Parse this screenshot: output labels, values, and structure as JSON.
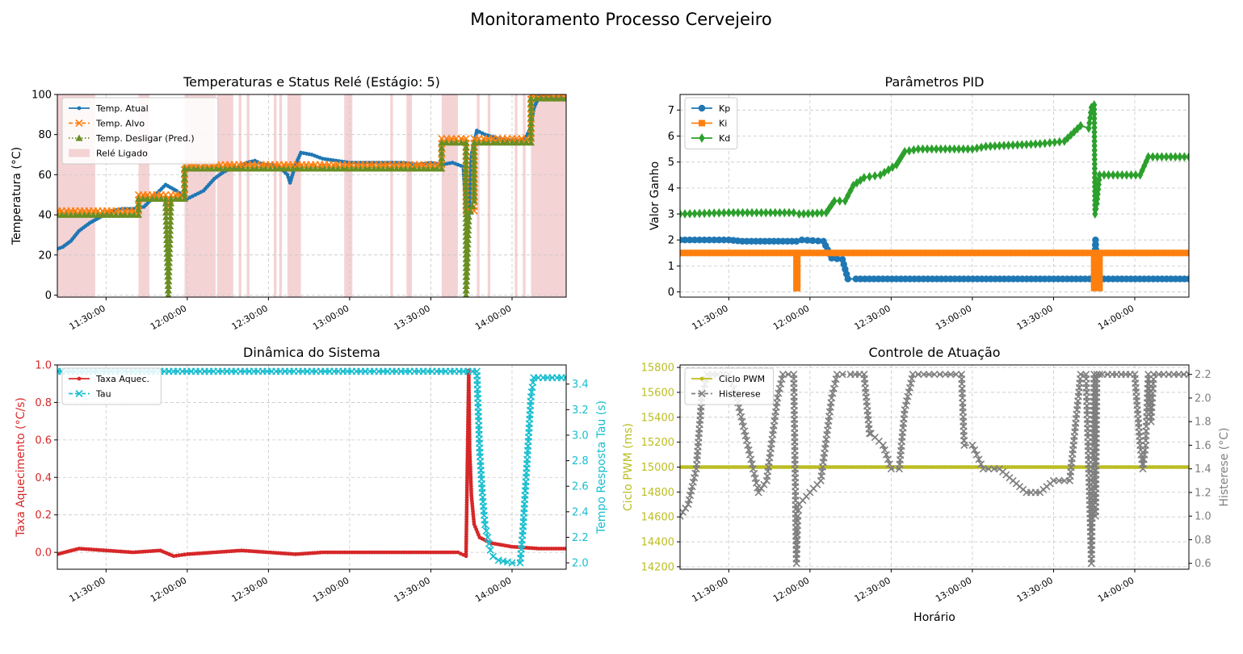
{
  "figure_title": "Monitoramento Processo Cervejeiro",
  "colors": {
    "blue": "#1f77b4",
    "orange": "#ff7f0e",
    "olive_green": "#6b8e23",
    "green": "#2ca02c",
    "red": "#d62728",
    "cyan": "#17becf",
    "olive": "#bcbd22",
    "gray": "#7f7f7f",
    "relay_fill": "#f4d3d5"
  },
  "chart_data": [
    {
      "id": "temps",
      "type": "line",
      "title": "Temperaturas e Status Relé (Estágio: 5)",
      "ylabel": "Temperatura (°C)",
      "xlabel": "",
      "xlim": [
        "11:12:00",
        "14:20:00"
      ],
      "xticks": [
        "11:30:00",
        "12:00:00",
        "12:30:00",
        "13:00:00",
        "13:30:00",
        "14:00:00"
      ],
      "ylim": [
        -1,
        100
      ],
      "yticks": [
        0,
        20,
        40,
        60,
        80,
        100
      ],
      "grid": true,
      "legend_position": "top-left",
      "legend": [
        "Temp. Atual",
        "Temp. Alvo",
        "Temp. Desligar (Pred.)",
        "Relé Ligado"
      ],
      "relay_on_intervals": [
        [
          "11:12:00",
          "11:26:00"
        ],
        [
          "11:42:00",
          "11:46:00"
        ],
        [
          "11:59:00",
          "12:10:30"
        ],
        [
          "12:11:00",
          "12:17:00"
        ],
        [
          "12:19:00",
          "12:20:00"
        ],
        [
          "12:22:00",
          "12:23:00"
        ],
        [
          "12:32:00",
          "12:33:00"
        ],
        [
          "12:34:00",
          "12:35:00"
        ],
        [
          "12:37:00",
          "12:42:00"
        ],
        [
          "12:58:00",
          "13:01:00"
        ],
        [
          "13:15:00",
          "13:16:00"
        ],
        [
          "13:21:00",
          "13:23:00"
        ],
        [
          "13:34:00",
          "13:40:00"
        ],
        [
          "13:47:00",
          "13:48:00"
        ],
        [
          "13:51:00",
          "13:52:00"
        ],
        [
          "14:01:00",
          "14:02:00"
        ],
        [
          "14:04:00",
          "14:05:00"
        ],
        [
          "14:07:00",
          "14:20:00"
        ]
      ],
      "series": [
        {
          "name": "Temp. Atual",
          "color": "#1f77b4",
          "style": "solid",
          "marker": "dot",
          "x": [
            "11:12:00",
            "11:14:00",
            "11:17:00",
            "11:20:00",
            "11:24:00",
            "11:28:00",
            "11:32:00",
            "11:36:00",
            "11:40:00",
            "11:44:00",
            "11:47:00",
            "11:49:00",
            "11:52:00",
            "11:56:00",
            "11:58:00",
            "12:00:00",
            "12:03:00",
            "12:06:00",
            "12:08:00",
            "12:10:00",
            "12:13:00",
            "12:16:00",
            "12:19:00",
            "12:22:00",
            "12:25:00",
            "12:28:00",
            "12:31:00",
            "12:34:00",
            "12:37:00",
            "12:38:00",
            "12:40:00",
            "12:42:00",
            "12:46:00",
            "12:50:00",
            "12:55:00",
            "13:00:00",
            "13:05:00",
            "13:10:00",
            "13:15:00",
            "13:20:00",
            "13:25:00",
            "13:30:00",
            "13:34:00",
            "13:38:00",
            "13:42:00",
            "13:43:00",
            "13:44:00",
            "13:45:00",
            "13:47:00",
            "13:50:00",
            "13:55:00",
            "14:00:00",
            "14:03:00",
            "14:05:00",
            "14:07:00",
            "14:08:00",
            "14:10:00",
            "14:20:00"
          ],
          "y": [
            23,
            24,
            27,
            32,
            36,
            39,
            42,
            43,
            43,
            44,
            48,
            51,
            55,
            52,
            50,
            48,
            50,
            52,
            55,
            58,
            61,
            63,
            64,
            66,
            67,
            65,
            65,
            64,
            60,
            56,
            65,
            71,
            70,
            68,
            67,
            66,
            66,
            66,
            66,
            66,
            65,
            66,
            65,
            66,
            64,
            42,
            38,
            70,
            82,
            80,
            78,
            77,
            77,
            78,
            84,
            93,
            99,
            98
          ]
        },
        {
          "name": "Temp. Alvo",
          "color": "#ff7f0e",
          "style": "dashed",
          "marker": "x",
          "x": [
            "11:12:00",
            "11:42:00",
            "11:42:00",
            "11:52:00",
            "11:53:00",
            "11:54:00",
            "11:59:00",
            "11:59:00",
            "13:34:00",
            "13:34:00",
            "13:43:00",
            "13:43:00",
            "13:46:00",
            "13:46:00",
            "14:07:00",
            "14:07:00",
            "14:20:00"
          ],
          "y": [
            42,
            42,
            50,
            50,
            42,
            50,
            50,
            65,
            65,
            78,
            78,
            42,
            42,
            78,
            78,
            100,
            100
          ]
        },
        {
          "name": "Temp. Desligar (Pred.)",
          "color": "#6b8e23",
          "style": "dotted",
          "marker": "triangle",
          "x": [
            "11:12:00",
            "11:42:00",
            "11:42:00",
            "11:52:00",
            "11:53:00",
            "11:54:00",
            "11:59:00",
            "11:59:00",
            "13:34:00",
            "13:34:00",
            "13:43:00",
            "13:43:00",
            "13:44:00",
            "13:46:00",
            "13:46:00",
            "14:07:00",
            "14:07:00",
            "14:20:00"
          ],
          "y": [
            40,
            40,
            48,
            48,
            0,
            48,
            48,
            63,
            63,
            76,
            76,
            0,
            39,
            47,
            76,
            76,
            98,
            98
          ]
        }
      ]
    },
    {
      "id": "pid",
      "type": "line",
      "title": "Parâmetros PID",
      "ylabel": "Valor Ganho",
      "xlabel": "",
      "xlim": [
        "11:12:00",
        "14:20:00"
      ],
      "xticks": [
        "11:30:00",
        "12:00:00",
        "12:30:00",
        "13:00:00",
        "13:30:00",
        "14:00:00"
      ],
      "ylim": [
        -0.2,
        7.6
      ],
      "yticks": [
        0,
        1,
        2,
        3,
        4,
        5,
        6,
        7
      ],
      "grid": true,
      "legend_position": "top-left",
      "series": [
        {
          "name": "Kp",
          "color": "#1f77b4",
          "marker": "circle",
          "x": [
            "11:12:00",
            "11:30:00",
            "11:35:00",
            "11:55:00",
            "11:57:00",
            "12:05:00",
            "12:08:00",
            "12:12:00",
            "12:14:00",
            "12:17:00",
            "13:45:00",
            "13:45:30",
            "13:46:00",
            "13:46:30",
            "13:47:00",
            "14:20:00"
          ],
          "y": [
            2.0,
            2.0,
            1.95,
            1.95,
            2.0,
            1.95,
            1.3,
            1.25,
            0.5,
            0.5,
            0.5,
            2.0,
            0.2,
            1.2,
            0.5,
            0.5
          ]
        },
        {
          "name": "Ki",
          "color": "#ff7f0e",
          "marker": "square",
          "x": [
            "11:12:00",
            "11:55:00",
            "11:55:00",
            "11:55:20",
            "11:55:20",
            "13:45:00",
            "13:45:00",
            "13:47:00",
            "13:47:00",
            "14:20:00"
          ],
          "y": [
            1.5,
            1.5,
            0.15,
            0.15,
            1.5,
            1.5,
            0.15,
            0.15,
            1.5,
            1.5
          ]
        },
        {
          "name": "Kd",
          "color": "#2ca02c",
          "marker": "diamond",
          "x": [
            "11:12:00",
            "11:30:00",
            "11:54:00",
            "11:56:00",
            "12:06:00",
            "12:09:00",
            "12:13:00",
            "12:16:00",
            "12:20:00",
            "12:26:00",
            "12:32:00",
            "12:35:00",
            "12:40:00",
            "13:00:00",
            "13:05:00",
            "13:25:00",
            "13:34:00",
            "13:40:00",
            "13:43:00",
            "13:44:00",
            "13:45:00",
            "13:45:20",
            "13:46:00",
            "13:47:00",
            "14:02:00",
            "14:05:00",
            "14:20:00"
          ],
          "y": [
            3.0,
            3.05,
            3.05,
            3.0,
            3.05,
            3.5,
            3.5,
            4.1,
            4.4,
            4.5,
            4.9,
            5.4,
            5.5,
            5.5,
            5.6,
            5.7,
            5.8,
            6.4,
            6.3,
            7.1,
            7.2,
            3.0,
            3.4,
            4.5,
            4.5,
            5.2,
            5.2
          ]
        }
      ]
    },
    {
      "id": "dynamics",
      "type": "line",
      "title": "Dinâmica do Sistema",
      "ylabel": "Taxa Aquecimento (°C/s)",
      "y2label": "Tempo Resposta Tau (s)",
      "xlabel": "",
      "xlim": [
        "11:12:00",
        "14:20:00"
      ],
      "xticks": [
        "11:30:00",
        "12:00:00",
        "12:30:00",
        "13:00:00",
        "13:30:00",
        "14:00:00"
      ],
      "ylim": [
        -0.09,
        1.0
      ],
      "yticks": [
        0.0,
        0.2,
        0.4,
        0.6,
        0.8,
        1.0
      ],
      "y2lim": [
        1.95,
        3.55
      ],
      "y2ticks": [
        2.0,
        2.2,
        2.4,
        2.6,
        2.8,
        3.0,
        3.2,
        3.4
      ],
      "grid": true,
      "legend_position": "top-left",
      "series": [
        {
          "name": "Taxa Aquec.",
          "color": "#d62728",
          "axis": "left",
          "marker": "dot",
          "x": [
            "11:12:00",
            "11:20:00",
            "11:30:00",
            "11:40:00",
            "11:50:00",
            "11:55:00",
            "12:00:00",
            "12:10:00",
            "12:20:00",
            "12:30:00",
            "12:40:00",
            "12:50:00",
            "13:00:00",
            "13:10:00",
            "13:20:00",
            "13:30:00",
            "13:40:00",
            "13:43:00",
            "13:44:00",
            "13:44:20",
            "13:45:00",
            "13:46:00",
            "13:48:00",
            "13:52:00",
            "14:00:00",
            "14:10:00",
            "14:20:00"
          ],
          "y": [
            -0.01,
            0.02,
            0.01,
            0.0,
            0.01,
            -0.02,
            -0.01,
            0.0,
            0.01,
            0.0,
            -0.01,
            0.0,
            0.0,
            0.0,
            0.0,
            0.0,
            0.0,
            -0.02,
            0.97,
            0.55,
            0.3,
            0.15,
            0.08,
            0.05,
            0.03,
            0.02,
            0.02
          ]
        },
        {
          "name": "Tau",
          "color": "#17becf",
          "axis": "right",
          "marker": "x",
          "x": [
            "11:12:00",
            "13:47:00",
            "13:48:00",
            "13:49:00",
            "13:50:00",
            "13:51:00",
            "13:52:00",
            "13:53:00",
            "13:55:00",
            "14:00:00",
            "14:03:00",
            "14:04:00",
            "14:05:00",
            "14:06:00",
            "14:07:00",
            "14:08:00",
            "14:20:00"
          ],
          "y": [
            3.5,
            3.5,
            2.9,
            2.55,
            2.3,
            2.2,
            2.1,
            2.05,
            2.02,
            2.0,
            2.0,
            2.25,
            2.6,
            2.95,
            3.3,
            3.45,
            3.45
          ]
        }
      ]
    },
    {
      "id": "actuation",
      "type": "line",
      "title": "Controle de Atuação",
      "ylabel": "Ciclo PWM (ms)",
      "y2label": "Histerese (°C)",
      "xlabel": "Horário",
      "xlim": [
        "11:12:00",
        "14:20:00"
      ],
      "xticks": [
        "11:30:00",
        "12:00:00",
        "12:30:00",
        "13:00:00",
        "13:30:00",
        "14:00:00"
      ],
      "ylim": [
        14180,
        15820
      ],
      "yticks": [
        14200,
        14400,
        14600,
        14800,
        15000,
        15200,
        15400,
        15600,
        15800
      ],
      "y2lim": [
        0.55,
        2.28
      ],
      "y2ticks": [
        0.6,
        0.8,
        1.0,
        1.2,
        1.4,
        1.6,
        1.8,
        2.0,
        2.2
      ],
      "grid": true,
      "legend_position": "top-left",
      "series": [
        {
          "name": "Ciclo PWM",
          "color": "#bcbd22",
          "axis": "left",
          "marker": "dot",
          "x": [
            "11:12:00",
            "14:20:00"
          ],
          "y": [
            15000,
            15000
          ]
        },
        {
          "name": "Histerese",
          "color": "#7f7f7f",
          "axis": "right",
          "marker": "x",
          "x": [
            "11:12:00",
            "11:15:00",
            "11:18:00",
            "11:20:00",
            "11:22:00",
            "11:30:00",
            "11:33:00",
            "11:37:00",
            "11:41:00",
            "11:44:00",
            "11:48:00",
            "11:50:00",
            "11:52:00",
            "11:54:00",
            "11:55:00",
            "11:55:30",
            "11:56:00",
            "12:00:00",
            "12:04:00",
            "12:08:00",
            "12:10:00",
            "12:12:00",
            "12:15:00",
            "12:20:00",
            "12:22:00",
            "12:22:30",
            "12:27:00",
            "12:30:00",
            "12:33:00",
            "12:35:00",
            "12:38:00",
            "12:42:00",
            "12:50:00",
            "12:56:00",
            "12:57:00",
            "13:00:00",
            "13:04:00",
            "13:10:00",
            "13:15:00",
            "13:20:00",
            "13:25:00",
            "13:30:00",
            "13:36:00",
            "13:40:00",
            "13:42:00",
            "13:44:00",
            "13:45:00",
            "13:45:30",
            "13:46:00",
            "13:47:00",
            "13:48:00",
            "13:50:00",
            "14:00:00",
            "14:02:00",
            "14:03:00",
            "14:04:00",
            "14:05:00",
            "14:06:00",
            "14:07:00",
            "14:20:00"
          ],
          "y": [
            1.0,
            1.1,
            1.4,
            2.0,
            2.2,
            2.2,
            2.0,
            1.6,
            1.2,
            1.3,
            2.0,
            2.2,
            2.2,
            2.2,
            0.6,
            1.0,
            1.1,
            1.2,
            1.3,
            2.0,
            2.2,
            2.2,
            2.2,
            2.2,
            1.7,
            1.7,
            1.6,
            1.4,
            1.4,
            1.9,
            2.2,
            2.2,
            2.2,
            2.2,
            1.6,
            1.6,
            1.4,
            1.4,
            1.3,
            1.2,
            1.2,
            1.3,
            1.3,
            2.2,
            2.2,
            0.6,
            2.2,
            1.0,
            2.2,
            2.2,
            2.2,
            2.2,
            2.2,
            1.6,
            1.4,
            1.6,
            2.2,
            1.8,
            2.2,
            2.2
          ]
        }
      ]
    }
  ]
}
